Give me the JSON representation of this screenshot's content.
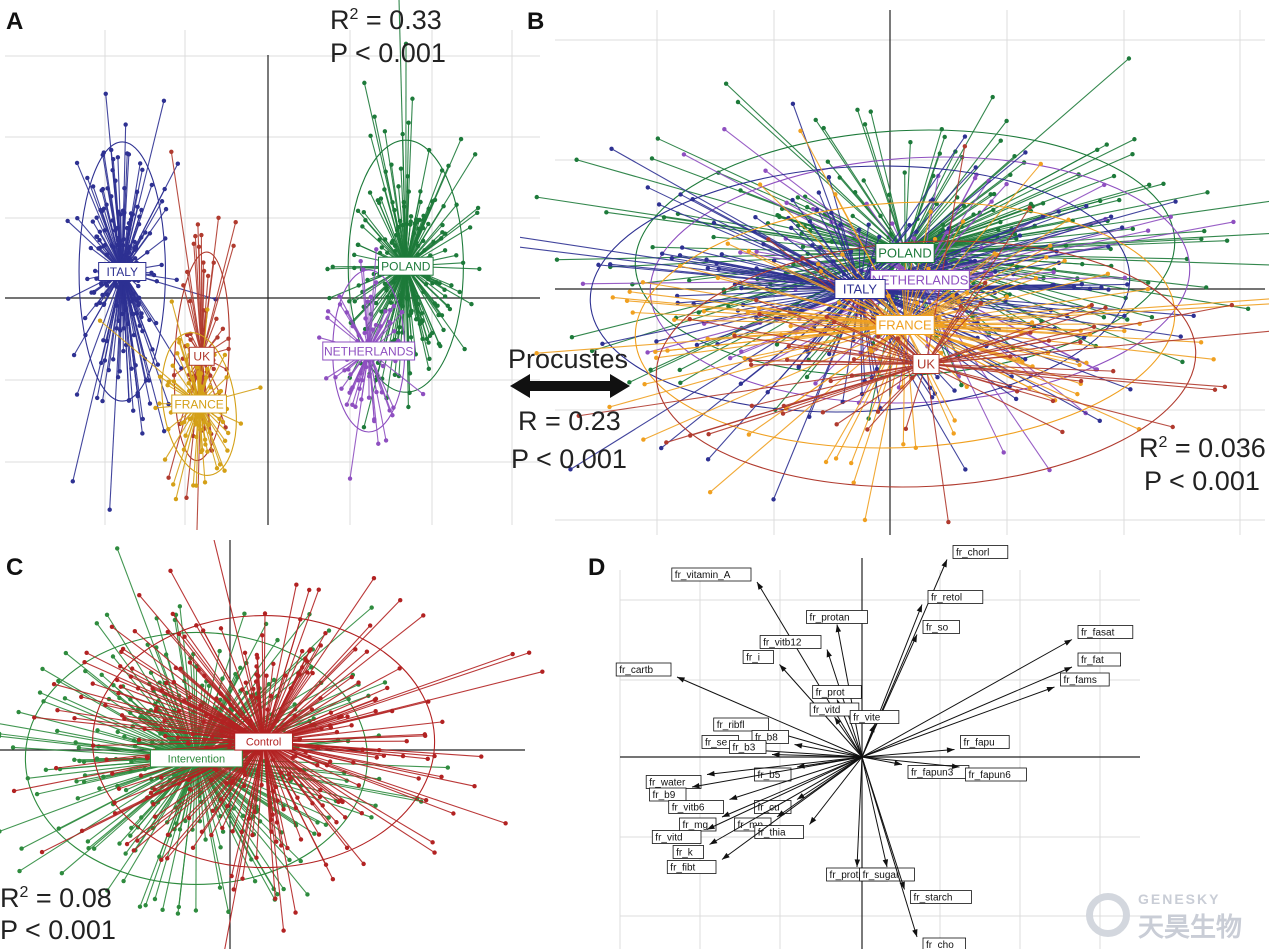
{
  "panel_letters": {
    "A": "A",
    "B": "B",
    "C": "C",
    "D": "D"
  },
  "colors": {
    "italy": "#2e3192",
    "poland": "#1d7a3a",
    "netherlands": "#8e4fc0",
    "france": "#f0a020",
    "france_dark": "#d4a017",
    "uk": "#b03a2e",
    "intervention": "#2e8b3e",
    "control": "#b22222",
    "grid": "#dcdcdc",
    "axis": "#222222"
  },
  "panel_a": {
    "r2_label": "R",
    "r2_value": " = 0.33",
    "p_label": "P < 0.001"
  },
  "panel_b": {
    "r2_label": "R",
    "r2_value": " = 0.036",
    "p_label": "P < 0.001"
  },
  "procrustes": {
    "title": "Procustes",
    "r_label": "R = 0.23",
    "p_label": "P < 0.001"
  },
  "panel_c": {
    "r2_label": "R",
    "r2_value": " = 0.08",
    "p_label": "P < 0.001"
  },
  "watermark": {
    "en": "GENESKY",
    "cn": "天昊生物"
  },
  "chart_data": [
    {
      "type": "scatter",
      "panel": "A",
      "description_groups": [
        {
          "name": "ITALY",
          "centroid": [
            -0.55,
            0.1
          ],
          "color": "#2e3192"
        },
        {
          "name": "UK",
          "centroid": [
            -0.25,
            -0.22
          ],
          "color": "#b03a2e"
        },
        {
          "name": "FRANCE",
          "centroid": [
            -0.26,
            -0.4
          ],
          "color": "#d4a017"
        },
        {
          "name": "POLAND",
          "centroid": [
            0.52,
            0.12
          ],
          "color": "#1d7a3a"
        },
        {
          "name": "NETHERLANDS",
          "centroid": [
            0.38,
            -0.2
          ],
          "color": "#8e4fc0"
        }
      ],
      "stats": {
        "R2": 0.33,
        "P": "< 0.001"
      }
    },
    {
      "type": "scatter",
      "panel": "B",
      "description_groups": [
        {
          "name": "POLAND",
          "centroid": [
            0.05,
            0.12
          ],
          "color": "#1d7a3a"
        },
        {
          "name": "NETHERLANDS",
          "centroid": [
            0.1,
            0.03
          ],
          "color": "#8e4fc0"
        },
        {
          "name": "ITALY",
          "centroid": [
            -0.1,
            0.0
          ],
          "color": "#2e3192"
        },
        {
          "name": "FRANCE",
          "centroid": [
            0.05,
            -0.12
          ],
          "color": "#f0a020"
        },
        {
          "name": "UK",
          "centroid": [
            0.12,
            -0.25
          ],
          "color": "#b03a2e"
        }
      ],
      "stats": {
        "R2": 0.036,
        "P": "< 0.001"
      }
    },
    {
      "type": "scatter",
      "panel": "C",
      "description_groups": [
        {
          "name": "Intervention",
          "centroid": [
            -0.12,
            -0.03
          ],
          "color": "#2e8b3e"
        },
        {
          "name": "Control",
          "centroid": [
            0.12,
            0.03
          ],
          "color": "#b22222"
        }
      ],
      "stats": {
        "R2": 0.08,
        "P": "< 0.001"
      }
    },
    {
      "type": "scatter",
      "panel": "D",
      "vectors": [
        {
          "name": "fr_chorl",
          "x": 0.34,
          "y": 0.79
        },
        {
          "name": "fr_retol",
          "x": 0.24,
          "y": 0.61
        },
        {
          "name": "fr_so",
          "x": 0.22,
          "y": 0.49
        },
        {
          "name": "fr_vitamin_A",
          "x": -0.42,
          "y": 0.7
        },
        {
          "name": "fr_protan",
          "x": -0.1,
          "y": 0.53
        },
        {
          "name": "fr_vitb12",
          "x": -0.14,
          "y": 0.43
        },
        {
          "name": "fr_i",
          "x": -0.33,
          "y": 0.37
        },
        {
          "name": "fr_cartb",
          "x": -0.74,
          "y": 0.32
        },
        {
          "name": "fr_prot",
          "x": -0.1,
          "y": 0.23
        },
        {
          "name": "fr_vitd",
          "x": -0.11,
          "y": 0.16
        },
        {
          "name": "fr_vite",
          "x": 0.05,
          "y": 0.13
        },
        {
          "name": "fr_fasat",
          "x": 0.84,
          "y": 0.47
        },
        {
          "name": "fr_fat",
          "x": 0.84,
          "y": 0.36
        },
        {
          "name": "fr_fams",
          "x": 0.77,
          "y": 0.28
        },
        {
          "name": "fr_fapu",
          "x": 0.37,
          "y": 0.03
        },
        {
          "name": "fr_fapun3",
          "x": 0.16,
          "y": -0.03
        },
        {
          "name": "fr_fapun6",
          "x": 0.39,
          "y": -0.04
        },
        {
          "name": "fr_se",
          "x": -0.47,
          "y": 0.03
        },
        {
          "name": "fr_ribfl",
          "x": -0.35,
          "y": 0.1
        },
        {
          "name": "fr_b8",
          "x": -0.27,
          "y": 0.05
        },
        {
          "name": "fr_b3",
          "x": -0.36,
          "y": 0.01
        },
        {
          "name": "fr_b5",
          "x": -0.26,
          "y": -0.04
        },
        {
          "name": "fr_water",
          "x": -0.62,
          "y": -0.07
        },
        {
          "name": "fr_b9",
          "x": -0.68,
          "y": -0.12
        },
        {
          "name": "fr_vitb6",
          "x": -0.53,
          "y": -0.17
        },
        {
          "name": "fr_cu",
          "x": -0.26,
          "y": -0.17
        },
        {
          "name": "fr_mg",
          "x": -0.56,
          "y": -0.24
        },
        {
          "name": "fr_mn",
          "x": -0.34,
          "y": -0.24
        },
        {
          "name": "fr_thia",
          "x": -0.21,
          "y": -0.27
        },
        {
          "name": "fr_vitd",
          "x": -0.62,
          "y": -0.29
        },
        {
          "name": "fr_k",
          "x": -0.61,
          "y": -0.35
        },
        {
          "name": "fr_fibt",
          "x": -0.56,
          "y": -0.41
        },
        {
          "name": "fr_protpl",
          "x": -0.02,
          "y": -0.44
        },
        {
          "name": "fr_sugar",
          "x": 0.1,
          "y": -0.44
        },
        {
          "name": "fr_starch",
          "x": 0.17,
          "y": -0.53
        },
        {
          "name": "fr_cho",
          "x": 0.22,
          "y": -0.72
        }
      ]
    }
  ]
}
